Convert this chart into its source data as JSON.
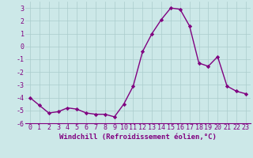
{
  "x": [
    0,
    1,
    2,
    3,
    4,
    5,
    6,
    7,
    8,
    9,
    10,
    11,
    12,
    13,
    14,
    15,
    16,
    17,
    18,
    19,
    20,
    21,
    22,
    23
  ],
  "y": [
    -4.0,
    -4.6,
    -5.2,
    -5.1,
    -4.8,
    -4.9,
    -5.2,
    -5.3,
    -5.3,
    -5.5,
    -4.5,
    -3.1,
    -0.4,
    1.0,
    2.1,
    3.0,
    2.9,
    1.6,
    -1.3,
    -1.55,
    -0.8,
    -3.1,
    -3.5,
    -3.7
  ],
  "line_color": "#800080",
  "marker": "D",
  "marker_size": 2.2,
  "bg_color": "#cce8e8",
  "grid_color": "#aacccc",
  "xlabel": "Windchill (Refroidissement éolien,°C)",
  "ylim": [
    -6,
    3.5
  ],
  "xlim": [
    -0.5,
    23.5
  ],
  "yticks": [
    -6,
    -5,
    -4,
    -3,
    -2,
    -1,
    0,
    1,
    2,
    3
  ],
  "xticks": [
    0,
    1,
    2,
    3,
    4,
    5,
    6,
    7,
    8,
    9,
    10,
    11,
    12,
    13,
    14,
    15,
    16,
    17,
    18,
    19,
    20,
    21,
    22,
    23
  ],
  "xlabel_fontsize": 6.5,
  "tick_fontsize": 6.0,
  "line_width": 1.0,
  "marker_color": "#800080"
}
